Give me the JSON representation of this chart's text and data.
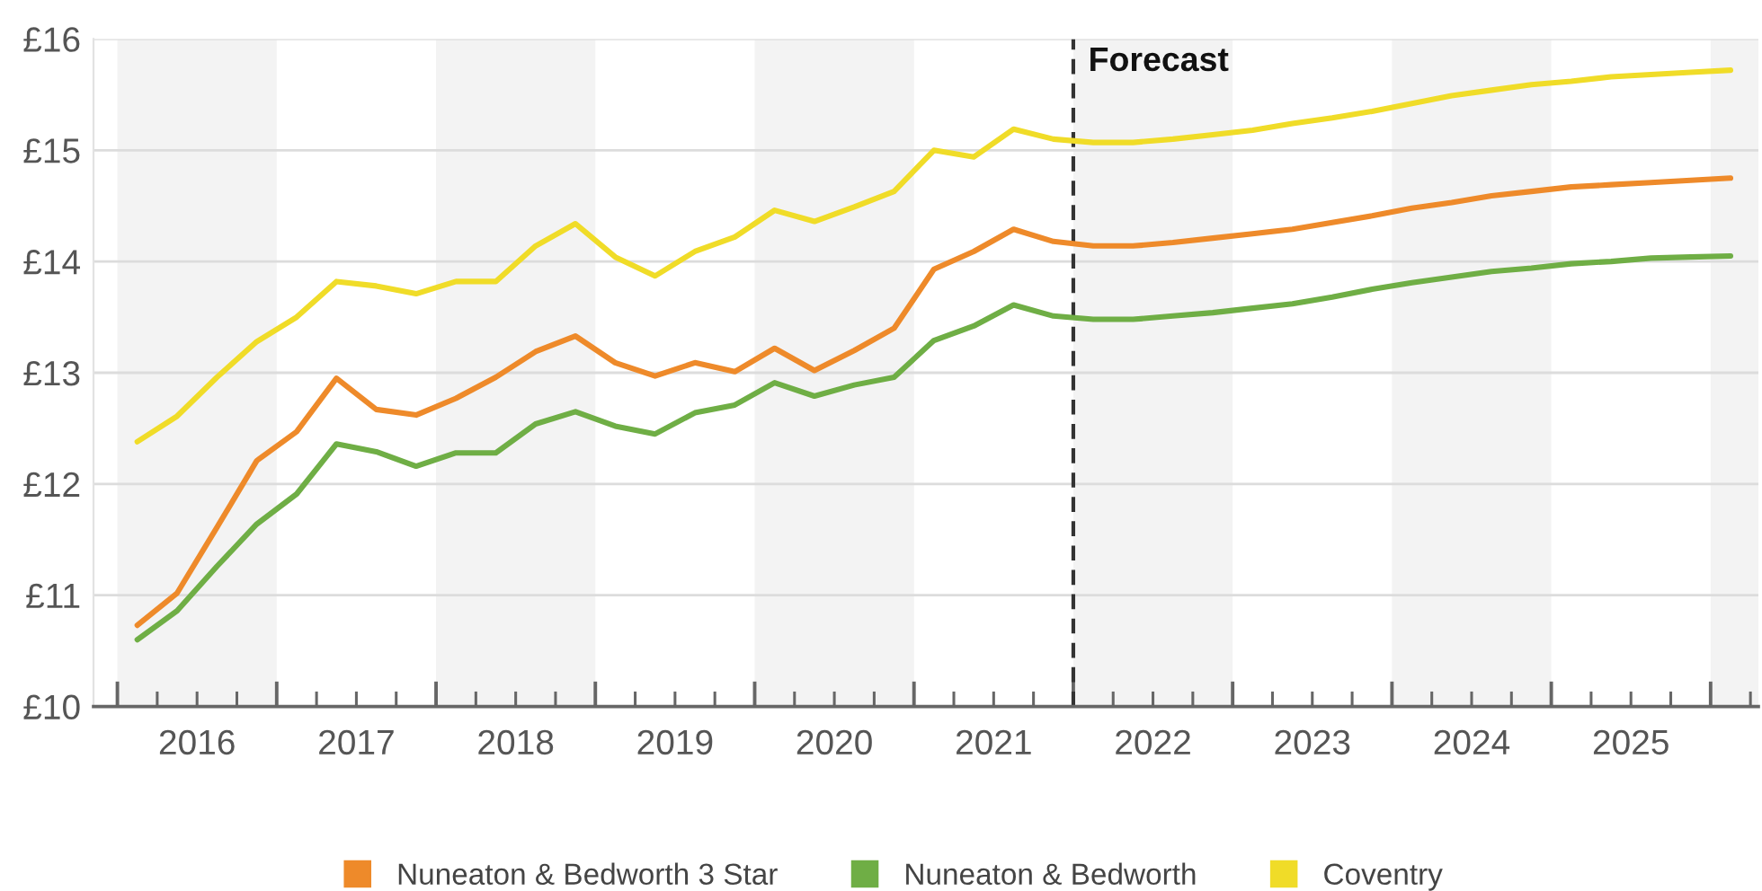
{
  "chart_data": {
    "type": "line",
    "line_style": "solid",
    "x": [
      2016.125,
      2016.375,
      2016.625,
      2016.875,
      2017.125,
      2017.375,
      2017.625,
      2017.875,
      2018.125,
      2018.375,
      2018.625,
      2018.875,
      2019.125,
      2019.375,
      2019.625,
      2019.875,
      2020.125,
      2020.375,
      2020.625,
      2020.875,
      2021.125,
      2021.375,
      2021.625,
      2021.875,
      2022.125,
      2022.375,
      2022.625,
      2022.875,
      2023.125,
      2023.375,
      2023.625,
      2023.875,
      2024.125,
      2024.375,
      2024.625,
      2024.875,
      2025.125,
      2025.375,
      2025.625,
      2025.875,
      2026.125
    ],
    "series": [
      {
        "name": "Nuneaton & Bedworth 3 Star",
        "color": "#ee8a2a",
        "values": [
          10.73,
          11.02,
          11.61,
          12.21,
          12.47,
          12.95,
          12.67,
          12.62,
          12.77,
          12.96,
          13.19,
          13.33,
          13.09,
          12.97,
          13.09,
          13.01,
          13.22,
          13.02,
          13.2,
          13.4,
          13.93,
          14.09,
          14.29,
          14.18,
          14.14,
          14.14,
          14.17,
          14.21,
          14.25,
          14.29,
          14.35,
          14.41,
          14.48,
          14.53,
          14.59,
          14.63,
          14.67,
          14.69,
          14.71,
          14.73,
          14.75
        ]
      },
      {
        "name": "Nuneaton & Bedworth",
        "color": "#6fae45",
        "values": [
          10.6,
          10.86,
          11.26,
          11.64,
          11.91,
          12.36,
          12.29,
          12.16,
          12.28,
          12.28,
          12.54,
          12.65,
          12.52,
          12.45,
          12.64,
          12.71,
          12.91,
          12.79,
          12.89,
          12.96,
          13.29,
          13.42,
          13.61,
          13.51,
          13.48,
          13.48,
          13.51,
          13.54,
          13.58,
          13.62,
          13.68,
          13.75,
          13.81,
          13.86,
          13.91,
          13.94,
          13.98,
          14.0,
          14.03,
          14.04,
          14.05
        ]
      },
      {
        "name": "Coventry",
        "color": "#f0dc28",
        "values": [
          12.38,
          12.61,
          12.96,
          13.28,
          13.5,
          13.82,
          13.78,
          13.71,
          13.82,
          13.82,
          14.14,
          14.34,
          14.04,
          13.87,
          14.09,
          14.22,
          14.46,
          14.36,
          14.49,
          14.63,
          15.0,
          14.94,
          15.19,
          15.1,
          15.07,
          15.07,
          15.1,
          15.14,
          15.18,
          15.24,
          15.29,
          15.35,
          15.42,
          15.49,
          15.54,
          15.59,
          15.62,
          15.66,
          15.68,
          15.7,
          15.72
        ]
      }
    ],
    "xlim": [
      2015.85,
      2026.3
    ],
    "ylim": [
      10,
      16
    ],
    "xticks": [
      {
        "value": 2016,
        "label": null
      },
      {
        "value": 2016.25,
        "label": null
      },
      {
        "value": 2016.5,
        "label": "2016"
      },
      {
        "value": 2016.75,
        "label": null
      },
      {
        "value": 2017,
        "label": null
      },
      {
        "value": 2017.25,
        "label": null
      },
      {
        "value": 2017.5,
        "label": "2017"
      },
      {
        "value": 2017.75,
        "label": null
      },
      {
        "value": 2018,
        "label": null
      },
      {
        "value": 2018.25,
        "label": null
      },
      {
        "value": 2018.5,
        "label": "2018"
      },
      {
        "value": 2018.75,
        "label": null
      },
      {
        "value": 2019,
        "label": null
      },
      {
        "value": 2019.25,
        "label": null
      },
      {
        "value": 2019.5,
        "label": "2019"
      },
      {
        "value": 2019.75,
        "label": null
      },
      {
        "value": 2020,
        "label": null
      },
      {
        "value": 2020.25,
        "label": null
      },
      {
        "value": 2020.5,
        "label": "2020"
      },
      {
        "value": 2020.75,
        "label": null
      },
      {
        "value": 2021,
        "label": null
      },
      {
        "value": 2021.25,
        "label": null
      },
      {
        "value": 2021.5,
        "label": "2021"
      },
      {
        "value": 2021.75,
        "label": null
      },
      {
        "value": 2022,
        "label": null
      },
      {
        "value": 2022.25,
        "label": null
      },
      {
        "value": 2022.5,
        "label": "2022"
      },
      {
        "value": 2022.75,
        "label": null
      },
      {
        "value": 2023,
        "label": null
      },
      {
        "value": 2023.25,
        "label": null
      },
      {
        "value": 2023.5,
        "label": "2023"
      },
      {
        "value": 2023.75,
        "label": null
      },
      {
        "value": 2024,
        "label": null
      },
      {
        "value": 2024.25,
        "label": null
      },
      {
        "value": 2024.5,
        "label": "2024"
      },
      {
        "value": 2024.75,
        "label": null
      },
      {
        "value": 2025,
        "label": null
      },
      {
        "value": 2025.25,
        "label": null
      },
      {
        "value": 2025.5,
        "label": "2025"
      },
      {
        "value": 2025.75,
        "label": null
      },
      {
        "value": 2026,
        "label": null
      },
      {
        "value": 2026.25,
        "label": null
      }
    ],
    "yticks": [
      {
        "value": 10,
        "label": "£10"
      },
      {
        "value": 11,
        "label": "£11"
      },
      {
        "value": 12,
        "label": "£12"
      },
      {
        "value": 13,
        "label": "£13"
      },
      {
        "value": 14,
        "label": "£14"
      },
      {
        "value": 15,
        "label": "£15"
      },
      {
        "value": 16,
        "label": "£16"
      }
    ],
    "grid": "y",
    "legend": "bottom",
    "bands": [
      {
        "axis": "x",
        "from": 2016,
        "to": 2017,
        "color": "#f3f3f3"
      },
      {
        "axis": "x",
        "from": 2018,
        "to": 2019,
        "color": "#f3f3f3"
      },
      {
        "axis": "x",
        "from": 2020,
        "to": 2021,
        "color": "#f3f3f3"
      },
      {
        "axis": "x",
        "from": 2022,
        "to": 2023,
        "color": "#f3f3f3"
      },
      {
        "axis": "x",
        "from": 2024,
        "to": 2025,
        "color": "#f3f3f3"
      },
      {
        "axis": "x",
        "from": 2026,
        "to": 2026.3,
        "color": "#f3f3f3"
      }
    ],
    "ref_lines": [
      {
        "axis": "x",
        "value": 2022,
        "label": "Forecast",
        "color": "#333333",
        "line_style": "dashed"
      }
    ]
  }
}
